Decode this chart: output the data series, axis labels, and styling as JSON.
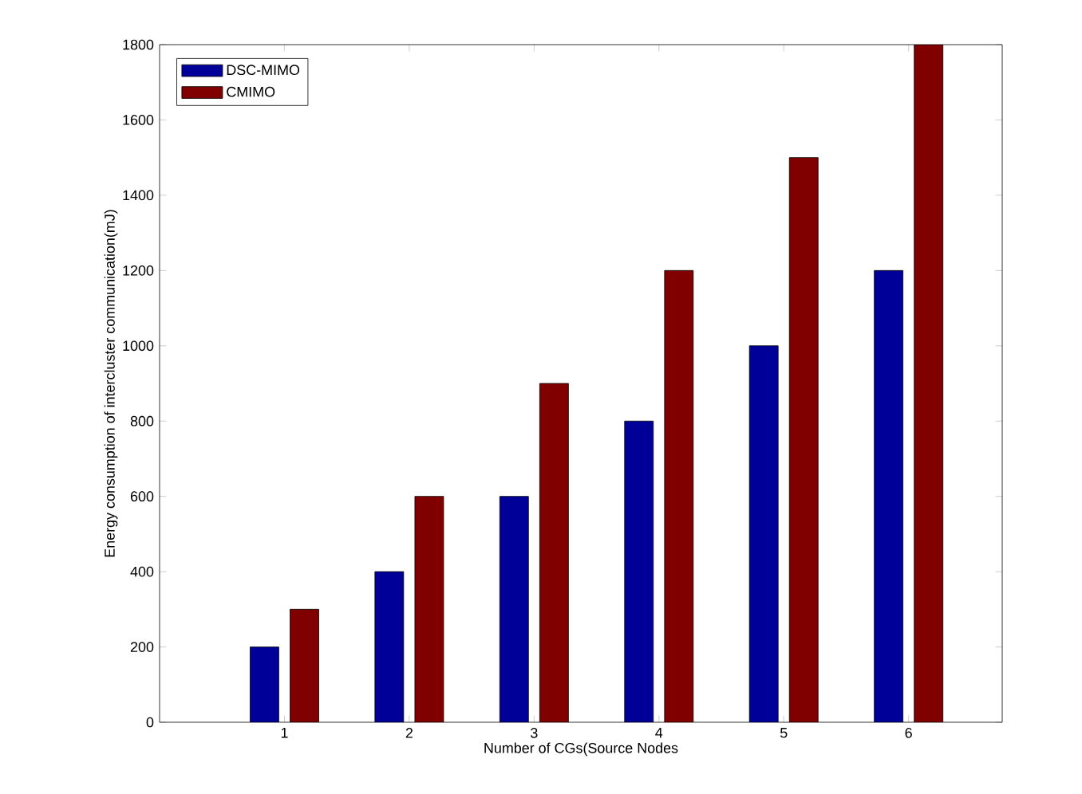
{
  "chart_data": {
    "type": "bar",
    "xlabel": "Number of CGs(Source Nodes",
    "ylabel": "Energy consumption of intercluster communication(mJ)",
    "x": [
      1,
      2,
      3,
      4,
      5,
      6
    ],
    "series": [
      {
        "name": "DSC-MIMO",
        "color": "#000099",
        "values": [
          200,
          400,
          600,
          800,
          1000,
          1200
        ]
      },
      {
        "name": "CMIMO",
        "color": "#800000",
        "values": [
          300,
          600,
          900,
          1200,
          1500,
          1800
        ]
      }
    ],
    "xlim": [
      0,
      6.75
    ],
    "xticks": [
      1,
      2,
      3,
      4,
      5,
      6
    ],
    "ylim": [
      0,
      1800
    ],
    "yticks": [
      0,
      200,
      400,
      600,
      800,
      1000,
      1200,
      1400,
      1600,
      1800
    ],
    "grid": false,
    "legend": "top left"
  }
}
